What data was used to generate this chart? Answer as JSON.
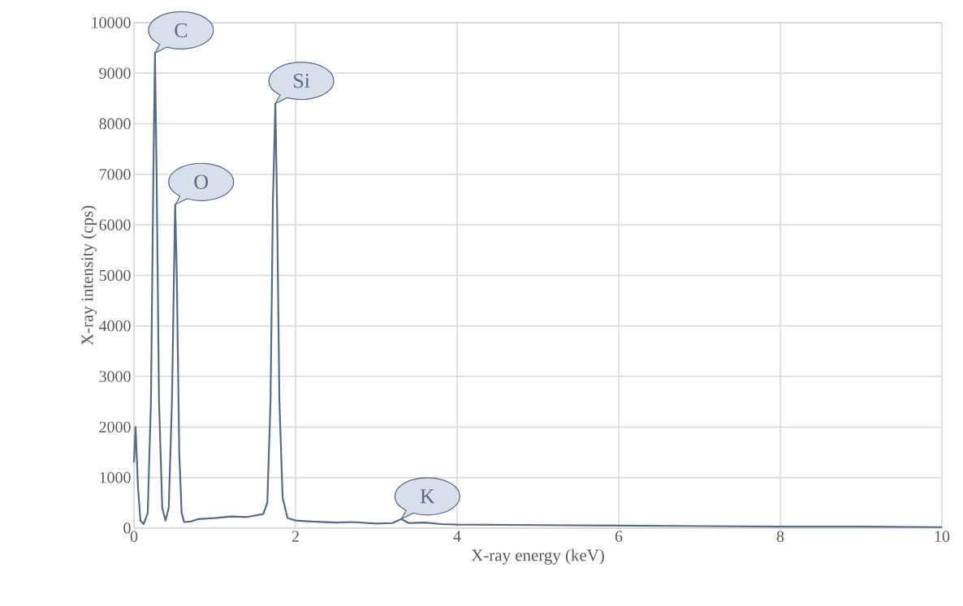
{
  "chart_data": {
    "type": "line",
    "xlabel": "X-ray energy (keV)",
    "ylabel": "X-ray intensity (cps)",
    "xlim": [
      0,
      10
    ],
    "ylim": [
      0,
      10000
    ],
    "xticks": [
      0,
      2,
      4,
      6,
      8,
      10
    ],
    "yticks": [
      0,
      1000,
      2000,
      3000,
      4000,
      5000,
      6000,
      7000,
      8000,
      9000,
      10000
    ],
    "grid": true,
    "marker": "none",
    "line_style": "solid",
    "annotations": [
      {
        "text": "C",
        "x": 0.26,
        "y": 9400
      },
      {
        "text": "O",
        "x": 0.51,
        "y": 6400
      },
      {
        "text": "Si",
        "x": 1.75,
        "y": 8400
      },
      {
        "text": "K",
        "x": 3.31,
        "y": 180
      }
    ],
    "series": [
      {
        "color": "#586a84",
        "x": [
          0,
          0.02,
          0.05,
          0.08,
          0.12,
          0.17,
          0.21,
          0.24,
          0.26,
          0.28,
          0.31,
          0.35,
          0.39,
          0.43,
          0.47,
          0.5,
          0.51,
          0.53,
          0.56,
          0.59,
          0.62,
          0.7,
          0.8,
          1.0,
          1.2,
          1.4,
          1.6,
          1.65,
          1.69,
          1.72,
          1.75,
          1.77,
          1.8,
          1.84,
          1.9,
          2.0,
          2.2,
          2.5,
          2.7,
          3.0,
          3.2,
          3.31,
          3.4,
          3.6,
          3.8,
          4.0,
          5,
          6,
          7,
          8,
          9,
          10
        ],
        "values": [
          1300,
          2000,
          800,
          150,
          80,
          300,
          2500,
          7000,
          9400,
          7000,
          2500,
          400,
          150,
          400,
          2500,
          5500,
          6400,
          5000,
          1500,
          300,
          120,
          130,
          180,
          200,
          230,
          220,
          280,
          500,
          2500,
          6500,
          8400,
          6500,
          2500,
          600,
          200,
          150,
          130,
          110,
          120,
          90,
          100,
          180,
          100,
          110,
          80,
          70,
          60,
          50,
          40,
          30,
          30,
          20
        ]
      }
    ]
  }
}
